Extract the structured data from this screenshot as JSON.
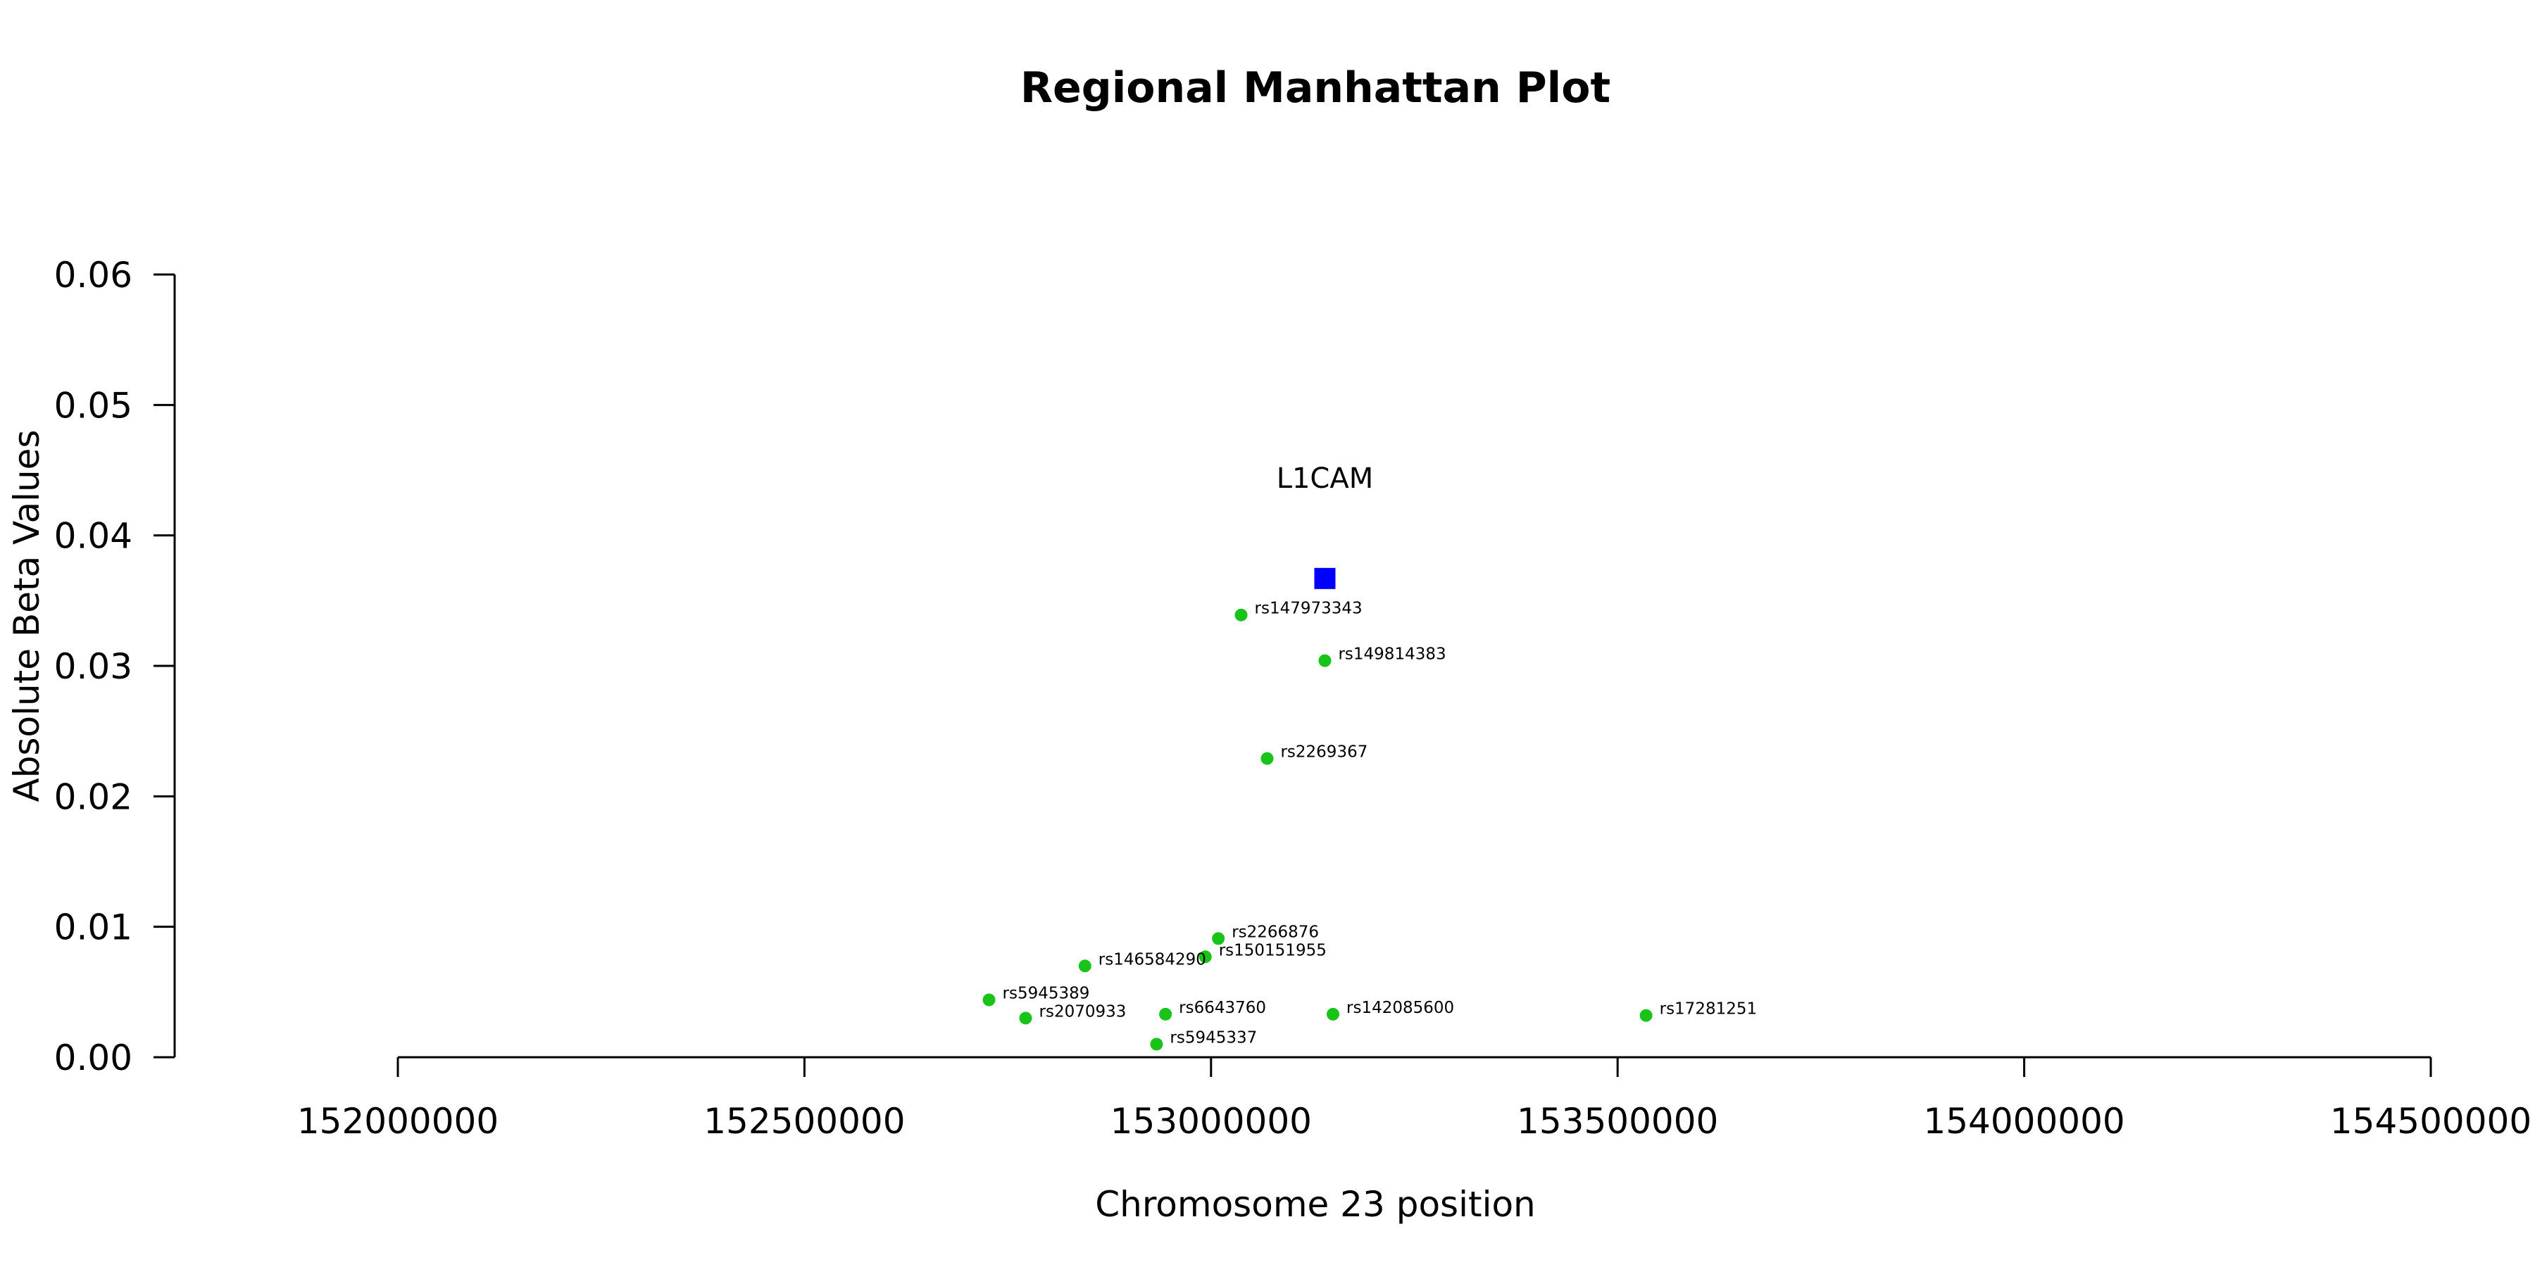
{
  "chart_data": {
    "type": "scatter",
    "title": "Regional Manhattan Plot",
    "xlabel": "Chromosome 23 position",
    "ylabel": "Absolute Beta Values",
    "xlim": [
      152000000,
      154500000
    ],
    "ylim": [
      0,
      0.06
    ],
    "x_ticks": [
      "152000000",
      "152500000",
      "153000000",
      "153500000",
      "154000000",
      "154500000"
    ],
    "y_ticks": [
      "0.00",
      "0.01",
      "0.02",
      "0.03",
      "0.04",
      "0.05",
      "0.06"
    ],
    "gene": {
      "name": "L1CAM",
      "x": 153140000,
      "y": 0.0367,
      "label_y": 0.045,
      "color": "#0000ff"
    },
    "point_color": "#18c418",
    "points": [
      {
        "label": "rs147973343",
        "x": 153037000,
        "y": 0.0339
      },
      {
        "label": "rs149814383",
        "x": 153140000,
        "y": 0.0304
      },
      {
        "label": "rs2269367",
        "x": 153069000,
        "y": 0.0229
      },
      {
        "label": "rs2266876",
        "x": 153009000,
        "y": 0.0091
      },
      {
        "label": "rs150151955",
        "x": 152993000,
        "y": 0.0077
      },
      {
        "label": "rs146584290",
        "x": 152845000,
        "y": 0.007
      },
      {
        "label": "rs5945389",
        "x": 152727000,
        "y": 0.0044
      },
      {
        "label": "rs2070933",
        "x": 152772000,
        "y": 0.003
      },
      {
        "label": "rs6643760",
        "x": 152944000,
        "y": 0.0033
      },
      {
        "label": "rs142085600",
        "x": 153150000,
        "y": 0.0033
      },
      {
        "label": "rs17281251",
        "x": 153535000,
        "y": 0.0032
      },
      {
        "label": "rs5945337",
        "x": 152933000,
        "y": 0.001
      }
    ]
  }
}
